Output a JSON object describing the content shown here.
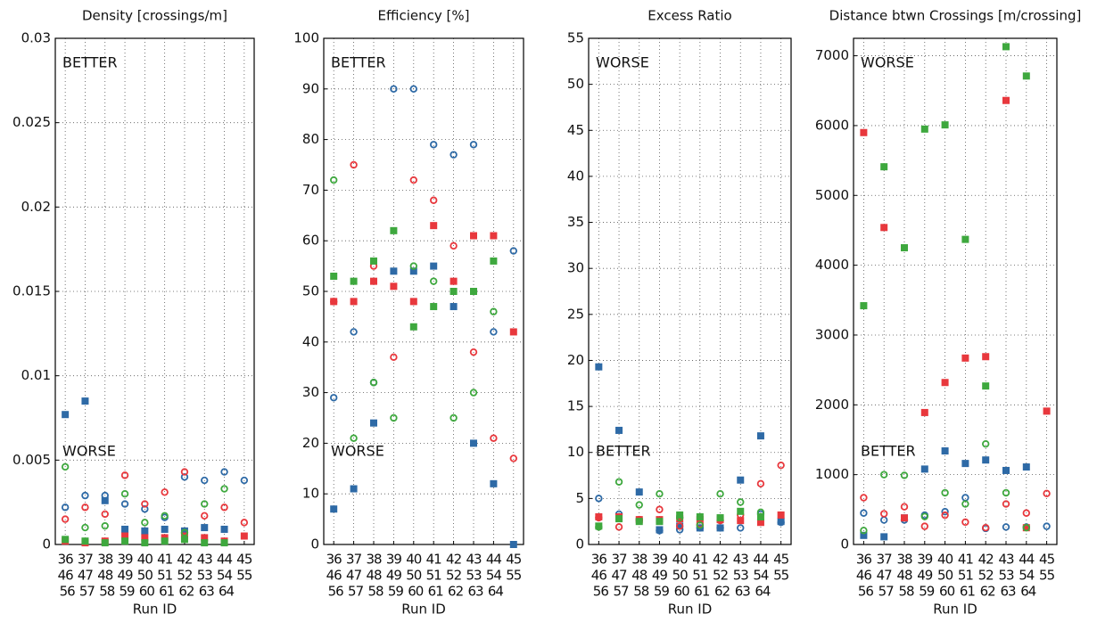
{
  "chart_data": [
    {
      "type": "scatter",
      "title": "Density [crossings/m]",
      "xlabel": "Run ID",
      "ylim": [
        0,
        0.03
      ],
      "yticks": [
        0,
        0.005,
        0.01,
        0.015,
        0.02,
        0.025,
        0.03
      ],
      "grid": true,
      "annotations": [
        {
          "text": "BETTER",
          "color": "#3ea83e",
          "corner": "top-left"
        },
        {
          "text": "WORSE",
          "color": "#e8383d",
          "corner": "bottom-left"
        }
      ],
      "groups": [
        {
          "color": "#2e6aa6",
          "runs": [
            36,
            37,
            38,
            39,
            40,
            41,
            42,
            43,
            44,
            45
          ],
          "squares": [
            0.0077,
            0.0085,
            0.0026,
            0.0009,
            0.0008,
            0.0009,
            0.0008,
            0.001,
            0.0009,
            null
          ],
          "circles": [
            0.0022,
            0.0029,
            0.0029,
            0.0024,
            0.0021,
            0.0016,
            0.004,
            0.0038,
            0.0043,
            0.0038
          ]
        },
        {
          "color": "#e8383d",
          "runs": [
            46,
            47,
            48,
            49,
            50,
            51,
            52,
            53,
            54,
            55
          ],
          "squares": [
            0.0002,
            0.0001,
            0.0002,
            0.0005,
            0.0004,
            0.0004,
            0.0005,
            0.0004,
            0.0002,
            0.0005
          ],
          "circles": [
            0.0015,
            0.0022,
            0.0018,
            0.0041,
            0.0024,
            0.0031,
            0.0043,
            0.0017,
            0.0022,
            0.0013
          ]
        },
        {
          "color": "#3ea83e",
          "runs": [
            56,
            57,
            58,
            59,
            60,
            61,
            62,
            63,
            64,
            null
          ],
          "squares": [
            0.0003,
            0.0002,
            0.0001,
            0.0002,
            0.0001,
            0.0002,
            0.0003,
            0.0001,
            0.0001,
            null
          ],
          "circles": [
            0.0046,
            0.001,
            0.0011,
            0.003,
            0.0013,
            0.0017,
            0.0007,
            0.0024,
            0.0033,
            null
          ]
        }
      ]
    },
    {
      "type": "scatter",
      "title": "Efficiency [%]",
      "xlabel": "Run ID",
      "ylim": [
        0,
        100
      ],
      "yticks": [
        0,
        10,
        20,
        30,
        40,
        50,
        60,
        70,
        80,
        90,
        100
      ],
      "grid": true,
      "annotations": [
        {
          "text": "BETTER",
          "color": "#3ea83e",
          "corner": "top-left"
        },
        {
          "text": "WORSE",
          "color": "#e8383d",
          "corner": "bottom-left"
        }
      ],
      "groups": [
        {
          "color": "#2e6aa6",
          "runs": [
            36,
            37,
            38,
            39,
            40,
            41,
            42,
            43,
            44,
            45
          ],
          "squares": [
            7,
            11,
            24,
            54,
            54,
            55,
            47,
            20,
            12,
            0
          ],
          "circles": [
            29,
            42,
            32,
            90,
            90,
            79,
            77,
            79,
            42,
            58
          ]
        },
        {
          "color": "#e8383d",
          "runs": [
            46,
            47,
            48,
            49,
            50,
            51,
            52,
            53,
            54,
            55
          ],
          "squares": [
            48,
            48,
            52,
            51,
            48,
            63,
            52,
            61,
            61,
            42
          ],
          "circles": [
            48,
            75,
            55,
            37,
            72,
            68,
            59,
            38,
            21,
            17
          ]
        },
        {
          "color": "#3ea83e",
          "runs": [
            56,
            57,
            58,
            59,
            60,
            61,
            62,
            63,
            64,
            null
          ],
          "squares": [
            53,
            52,
            56,
            62,
            43,
            47,
            50,
            50,
            56,
            null
          ],
          "circles": [
            72,
            21,
            32,
            25,
            55,
            52,
            25,
            30,
            46,
            null
          ]
        }
      ]
    },
    {
      "type": "scatter",
      "title": "Excess Ratio",
      "xlabel": "Run ID",
      "ylim": [
        0,
        55
      ],
      "yticks": [
        0,
        5,
        10,
        15,
        20,
        25,
        30,
        35,
        40,
        45,
        50,
        55
      ],
      "grid": true,
      "annotations": [
        {
          "text": "WORSE",
          "color": "#e8383d",
          "corner": "top-left"
        },
        {
          "text": "BETTER",
          "color": "#3ea83e",
          "corner": "bottom-left"
        }
      ],
      "groups": [
        {
          "color": "#2e6aa6",
          "runs": [
            36,
            37,
            38,
            39,
            40,
            41,
            42,
            43,
            44,
            45
          ],
          "squares": [
            19.3,
            12.4,
            5.7,
            1.6,
            2.0,
            1.8,
            1.8,
            7.0,
            11.8,
            2.5
          ],
          "circles": [
            5.0,
            3.3,
            2.6,
            1.5,
            1.6,
            1.8,
            1.8,
            1.8,
            3.3,
            2.4
          ]
        },
        {
          "color": "#e8383d",
          "runs": [
            46,
            47,
            48,
            49,
            50,
            51,
            52,
            53,
            54,
            55
          ],
          "squares": [
            3.0,
            3.0,
            2.7,
            2.7,
            2.8,
            2.7,
            2.7,
            2.6,
            2.4,
            3.2
          ],
          "circles": [
            2.9,
            1.9,
            2.7,
            3.8,
            2.0,
            2.2,
            2.6,
            3.2,
            6.6,
            8.6
          ]
        },
        {
          "color": "#3ea83e",
          "runs": [
            56,
            57,
            58,
            59,
            60,
            61,
            62,
            63,
            64,
            null
          ],
          "squares": [
            2.0,
            2.8,
            2.5,
            2.5,
            3.2,
            3.0,
            2.9,
            3.6,
            3.0,
            null
          ],
          "circles": [
            1.9,
            6.8,
            4.3,
            5.5,
            2.9,
            2.1,
            5.5,
            4.6,
            3.5,
            null
          ]
        }
      ]
    },
    {
      "type": "scatter",
      "title": "Distance btwn Crossings [m/crossing]",
      "xlabel": "Run ID",
      "ylim": [
        0,
        7250
      ],
      "yticks": [
        0,
        1000,
        2000,
        3000,
        4000,
        5000,
        6000,
        7000
      ],
      "grid": true,
      "annotations": [
        {
          "text": "WORSE",
          "color": "#e8383d",
          "corner": "top-left"
        },
        {
          "text": "BETTER",
          "color": "#3ea83e",
          "corner": "bottom-left"
        }
      ],
      "groups": [
        {
          "color": "#2e6aa6",
          "runs": [
            36,
            37,
            38,
            39,
            40,
            41,
            42,
            43,
            44,
            45
          ],
          "squares": [
            130,
            110,
            380,
            1080,
            1340,
            1160,
            1210,
            1060,
            1110,
            null
          ],
          "circles": [
            450,
            350,
            350,
            420,
            470,
            670,
            230,
            250,
            250,
            260
          ]
        },
        {
          "color": "#e8383d",
          "runs": [
            46,
            47,
            48,
            49,
            50,
            51,
            52,
            53,
            54,
            55
          ],
          "squares": [
            5900,
            4540,
            380,
            1890,
            2320,
            2670,
            2690,
            6360,
            240,
            1910
          ],
          "circles": [
            670,
            440,
            540,
            260,
            420,
            320,
            240,
            580,
            450,
            730
          ]
        },
        {
          "color": "#3ea83e",
          "runs": [
            56,
            57,
            58,
            59,
            60,
            61,
            62,
            63,
            64,
            null
          ],
          "squares": [
            3420,
            5410,
            4250,
            5950,
            6010,
            4370,
            2270,
            7130,
            6710,
            null
          ],
          "circles": [
            200,
            1000,
            990,
            400,
            740,
            580,
            1440,
            740,
            240,
            null
          ]
        }
      ]
    }
  ]
}
